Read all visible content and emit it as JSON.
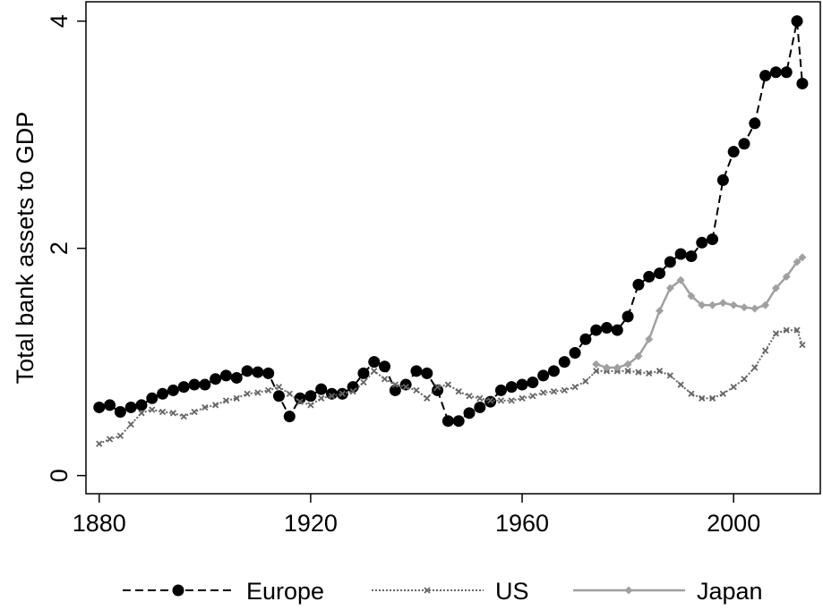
{
  "chart_data": {
    "type": "line",
    "y_label": "Total bank assets to GDP",
    "x": [
      1880,
      1882,
      1884,
      1886,
      1888,
      1890,
      1892,
      1894,
      1896,
      1898,
      1900,
      1902,
      1904,
      1906,
      1908,
      1910,
      1912,
      1914,
      1916,
      1918,
      1920,
      1922,
      1924,
      1926,
      1928,
      1930,
      1932,
      1934,
      1936,
      1938,
      1940,
      1942,
      1944,
      1946,
      1948,
      1950,
      1952,
      1954,
      1956,
      1958,
      1960,
      1962,
      1964,
      1966,
      1968,
      1970,
      1972,
      1974,
      1976,
      1978,
      1980,
      1982,
      1984,
      1986,
      1988,
      1990,
      1992,
      1994,
      1996,
      1998,
      2000,
      2002,
      2004,
      2006,
      2008,
      2010,
      2012,
      2013
    ],
    "series": [
      {
        "name": "Europe",
        "color": "#000000",
        "line_style": "dashed",
        "marker": "circle",
        "values": [
          0.6,
          0.62,
          0.56,
          0.6,
          0.62,
          0.68,
          0.72,
          0.75,
          0.78,
          0.8,
          0.8,
          0.85,
          0.88,
          0.86,
          0.92,
          0.91,
          0.9,
          0.7,
          0.52,
          0.68,
          0.7,
          0.76,
          0.72,
          0.72,
          0.78,
          0.9,
          1.0,
          0.96,
          0.75,
          0.8,
          0.92,
          0.9,
          0.75,
          0.48,
          0.48,
          0.55,
          0.6,
          0.65,
          0.75,
          0.78,
          0.8,
          0.82,
          0.88,
          0.92,
          1.0,
          1.08,
          1.2,
          1.28,
          1.3,
          1.28,
          1.4,
          1.68,
          1.75,
          1.78,
          1.88,
          1.95,
          1.93,
          2.05,
          2.08,
          2.6,
          2.85,
          2.92,
          3.1,
          3.52,
          3.55,
          3.55,
          4.0,
          3.45
        ]
      },
      {
        "name": "US",
        "color": "#666666",
        "line_style": "dotted",
        "marker": "x",
        "values": [
          0.28,
          0.32,
          0.35,
          0.45,
          0.55,
          0.58,
          0.56,
          0.55,
          0.52,
          0.56,
          0.6,
          0.62,
          0.66,
          0.68,
          0.72,
          0.73,
          0.75,
          0.78,
          0.72,
          0.65,
          0.62,
          0.68,
          0.7,
          0.72,
          0.74,
          0.82,
          0.92,
          0.85,
          0.8,
          0.78,
          0.75,
          0.68,
          0.78,
          0.8,
          0.74,
          0.7,
          0.68,
          0.66,
          0.66,
          0.66,
          0.68,
          0.7,
          0.73,
          0.74,
          0.75,
          0.78,
          0.83,
          0.92,
          0.92,
          0.92,
          0.92,
          0.91,
          0.9,
          0.92,
          0.88,
          0.8,
          0.72,
          0.68,
          0.68,
          0.72,
          0.78,
          0.85,
          0.95,
          1.1,
          1.25,
          1.28,
          1.28,
          1.15
        ]
      },
      {
        "name": "Japan",
        "color": "#a0a0a0",
        "line_style": "solid",
        "marker": "diamond",
        "values": [
          null,
          null,
          null,
          null,
          null,
          null,
          null,
          null,
          null,
          null,
          null,
          null,
          null,
          null,
          null,
          null,
          null,
          null,
          null,
          null,
          null,
          null,
          null,
          null,
          null,
          null,
          null,
          null,
          null,
          null,
          null,
          null,
          null,
          null,
          null,
          null,
          null,
          null,
          null,
          null,
          null,
          null,
          null,
          null,
          null,
          null,
          null,
          0.98,
          0.95,
          0.95,
          0.98,
          1.05,
          1.2,
          1.45,
          1.65,
          1.72,
          1.58,
          1.5,
          1.5,
          1.52,
          1.5,
          1.48,
          1.47,
          1.5,
          1.65,
          1.75,
          1.88,
          1.92
        ]
      }
    ],
    "xlim": [
      1877.5,
      2016.4
    ],
    "xticks": [
      1880,
      1920,
      1960,
      2000
    ],
    "ylim": [
      -0.16,
      4.17
    ],
    "yticks": [
      0,
      2,
      4
    ],
    "grid": false,
    "legend_position": "bottom"
  }
}
